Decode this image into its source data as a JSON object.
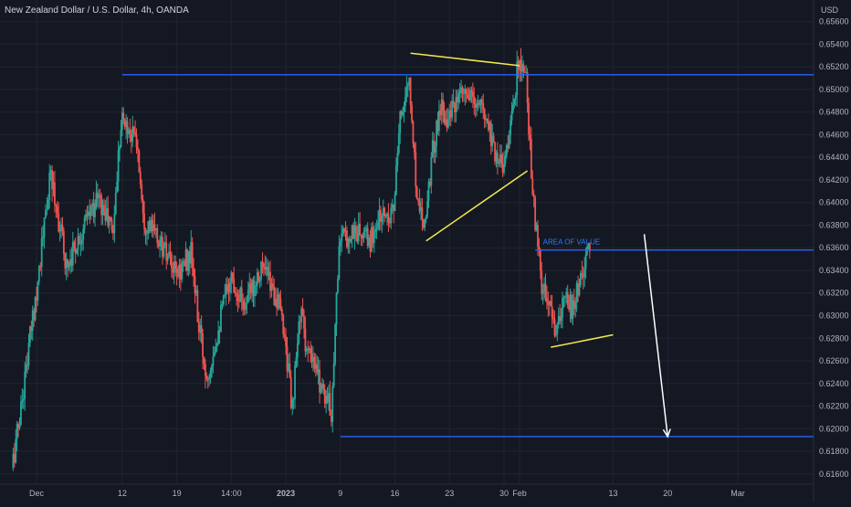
{
  "header": {
    "title": "New Zealand Dollar / U.S. Dollar, 4h, OANDA",
    "currency": "USD"
  },
  "colors": {
    "background": "#141823",
    "grid": "#1f2430",
    "up": "#26a69a",
    "down": "#ef5350",
    "level_line": "#2962ff",
    "pattern_line": "#f5e84c",
    "arrow": "#ffffff",
    "annotation_text": "#2e7cf6",
    "axis_text": "#b2b5be"
  },
  "chart_data": {
    "type": "candlestick",
    "title": "New Zealand Dollar / U.S. Dollar, 4h, OANDA",
    "y_unit": "USD",
    "ylim": [
      0.6155,
      0.6571
    ],
    "y_ticks": [
      "0.61600",
      "0.61800",
      "0.62000",
      "0.62200",
      "0.62400",
      "0.62600",
      "0.62800",
      "0.63000",
      "0.63200",
      "0.63400",
      "0.63600",
      "0.63800",
      "0.64000",
      "0.64200",
      "0.64400",
      "0.64600",
      "0.64800",
      "0.65000",
      "0.65200",
      "0.65400",
      "0.65600"
    ],
    "x_ticks": [
      {
        "label": "Dec",
        "date": "2022-12-01"
      },
      {
        "label": "12",
        "date": "2022-12-12"
      },
      {
        "label": "19",
        "date": "2022-12-19"
      },
      {
        "label": "14:00",
        "date": "2022-12-26"
      },
      {
        "label": "2023",
        "date": "2023-01-02"
      },
      {
        "label": "9",
        "date": "2023-01-09"
      },
      {
        "label": "16",
        "date": "2023-01-16"
      },
      {
        "label": "23",
        "date": "2023-01-23"
      },
      {
        "label": "30",
        "date": "2023-01-30"
      },
      {
        "label": "Feb",
        "date": "2023-02-01"
      },
      {
        "label": "13",
        "date": "2023-02-13"
      },
      {
        "label": "20",
        "date": "2023-02-20"
      },
      {
        "label": "Mar",
        "date": "2023-03-01"
      }
    ],
    "price_anchors": [
      [
        "2022-11-28",
        0.6165
      ],
      [
        "2022-11-29",
        0.621
      ],
      [
        "2022-12-01",
        0.6315
      ],
      [
        "2022-12-03",
        0.6425
      ],
      [
        "2022-12-05",
        0.6345
      ],
      [
        "2022-12-07",
        0.6375
      ],
      [
        "2022-12-09",
        0.6405
      ],
      [
        "2022-12-11",
        0.6375
      ],
      [
        "2022-12-12",
        0.6475
      ],
      [
        "2022-12-14",
        0.6455
      ],
      [
        "2022-12-15",
        0.6385
      ],
      [
        "2022-12-17",
        0.6365
      ],
      [
        "2022-12-19",
        0.6335
      ],
      [
        "2022-12-21",
        0.6355
      ],
      [
        "2022-12-22",
        0.629
      ],
      [
        "2022-12-23",
        0.6245
      ],
      [
        "2022-12-26",
        0.6335
      ],
      [
        "2022-12-28",
        0.631
      ],
      [
        "2022-12-30",
        0.6345
      ],
      [
        "2023-01-01",
        0.6315
      ],
      [
        "2023-01-02",
        0.6285
      ],
      [
        "2023-01-03",
        0.6215
      ],
      [
        "2023-01-04",
        0.6305
      ],
      [
        "2023-01-05",
        0.6265
      ],
      [
        "2023-01-07",
        0.6235
      ],
      [
        "2023-01-08",
        0.6215
      ],
      [
        "2023-01-09",
        0.6365
      ],
      [
        "2023-01-11",
        0.6375
      ],
      [
        "2023-01-13",
        0.6365
      ],
      [
        "2023-01-14",
        0.6385
      ],
      [
        "2023-01-16",
        0.6395
      ],
      [
        "2023-01-17",
        0.6485
      ],
      [
        "2023-01-18",
        0.6505
      ],
      [
        "2023-01-19",
        0.6405
      ],
      [
        "2023-01-20",
        0.6385
      ],
      [
        "2023-01-21",
        0.6445
      ],
      [
        "2023-01-22",
        0.6485
      ],
      [
        "2023-01-23",
        0.6475
      ],
      [
        "2023-01-25",
        0.6495
      ],
      [
        "2023-01-27",
        0.6485
      ],
      [
        "2023-01-28",
        0.6475
      ],
      [
        "2023-01-29",
        0.6445
      ],
      [
        "2023-01-30",
        0.6435
      ],
      [
        "2023-01-31",
        0.6465
      ],
      [
        "2023-02-01",
        0.6525
      ],
      [
        "2023-02-02",
        0.6505
      ],
      [
        "2023-02-03",
        0.6395
      ],
      [
        "2023-02-04",
        0.6325
      ],
      [
        "2023-02-06",
        0.6285
      ],
      [
        "2023-02-07",
        0.6315
      ],
      [
        "2023-02-08",
        0.6305
      ],
      [
        "2023-02-09",
        0.6335
      ],
      [
        "2023-02-10",
        0.6355
      ]
    ],
    "levels": [
      {
        "from": "2022-12-12",
        "to": "end",
        "price": 0.6513
      },
      {
        "from": "2023-02-03",
        "to": "end",
        "price": 0.6358
      },
      {
        "from": "2023-01-09",
        "to": "end",
        "price": 0.6193
      }
    ],
    "pattern_lines": [
      {
        "from": [
          "2023-01-18",
          0.6532
        ],
        "to": [
          "2023-02-01",
          0.6521
        ]
      },
      {
        "from": [
          "2023-01-20",
          0.6366
        ],
        "to": [
          "2023-02-02",
          0.6428
        ]
      },
      {
        "from": [
          "2023-02-05",
          0.6272
        ],
        "to": [
          "2023-02-13",
          0.6283
        ]
      }
    ],
    "arrow": {
      "from": [
        "2023-02-17",
        0.6372
      ],
      "to": [
        "2023-02-20",
        0.6193
      ]
    },
    "annotations": [
      {
        "text": "AREA OF VALUE",
        "date": "2023-02-04",
        "price": 0.6363
      }
    ],
    "grid": true,
    "legend": "none"
  }
}
